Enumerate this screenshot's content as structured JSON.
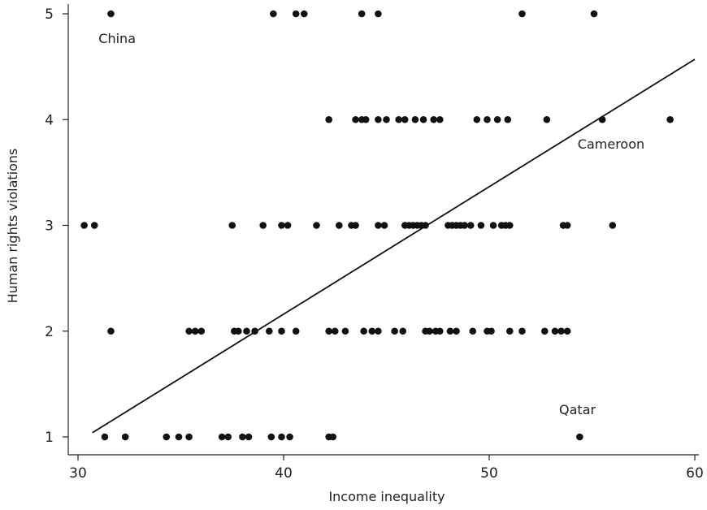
{
  "chart_data": {
    "type": "scatter",
    "xlabel": "Income inequality",
    "ylabel": "Human rights violations",
    "xlim": [
      29.6,
      60.6
    ],
    "ylim": [
      0.88,
      5.1
    ],
    "x_ticks": [
      30,
      40,
      50,
      60
    ],
    "y_ticks": [
      1,
      2,
      3,
      4,
      5
    ],
    "grid": false,
    "colors": {
      "points": "#111111",
      "line": "#111111"
    },
    "points": [
      {
        "x": 31.6,
        "y": 5
      },
      {
        "x": 39.5,
        "y": 5
      },
      {
        "x": 40.6,
        "y": 5
      },
      {
        "x": 41.0,
        "y": 5
      },
      {
        "x": 43.8,
        "y": 5
      },
      {
        "x": 44.6,
        "y": 5
      },
      {
        "x": 51.6,
        "y": 5
      },
      {
        "x": 55.1,
        "y": 5
      },
      {
        "x": 42.2,
        "y": 4
      },
      {
        "x": 43.5,
        "y": 4
      },
      {
        "x": 43.8,
        "y": 4
      },
      {
        "x": 44.0,
        "y": 4
      },
      {
        "x": 44.6,
        "y": 4
      },
      {
        "x": 45.0,
        "y": 4
      },
      {
        "x": 45.6,
        "y": 4
      },
      {
        "x": 45.9,
        "y": 4
      },
      {
        "x": 46.4,
        "y": 4
      },
      {
        "x": 46.8,
        "y": 4
      },
      {
        "x": 47.3,
        "y": 4
      },
      {
        "x": 47.6,
        "y": 4
      },
      {
        "x": 49.4,
        "y": 4
      },
      {
        "x": 49.9,
        "y": 4
      },
      {
        "x": 50.4,
        "y": 4
      },
      {
        "x": 50.9,
        "y": 4
      },
      {
        "x": 52.8,
        "y": 4
      },
      {
        "x": 55.5,
        "y": 4
      },
      {
        "x": 58.8,
        "y": 4
      },
      {
        "x": 30.3,
        "y": 3
      },
      {
        "x": 30.8,
        "y": 3
      },
      {
        "x": 37.5,
        "y": 3
      },
      {
        "x": 39.0,
        "y": 3
      },
      {
        "x": 39.9,
        "y": 3
      },
      {
        "x": 40.2,
        "y": 3
      },
      {
        "x": 41.6,
        "y": 3
      },
      {
        "x": 42.7,
        "y": 3
      },
      {
        "x": 43.3,
        "y": 3
      },
      {
        "x": 43.5,
        "y": 3
      },
      {
        "x": 44.6,
        "y": 3
      },
      {
        "x": 44.9,
        "y": 3
      },
      {
        "x": 45.9,
        "y": 3
      },
      {
        "x": 46.1,
        "y": 3
      },
      {
        "x": 46.3,
        "y": 3
      },
      {
        "x": 46.5,
        "y": 3
      },
      {
        "x": 46.7,
        "y": 3
      },
      {
        "x": 46.9,
        "y": 3
      },
      {
        "x": 48.0,
        "y": 3
      },
      {
        "x": 48.2,
        "y": 3
      },
      {
        "x": 48.4,
        "y": 3
      },
      {
        "x": 48.6,
        "y": 3
      },
      {
        "x": 48.8,
        "y": 3
      },
      {
        "x": 49.1,
        "y": 3
      },
      {
        "x": 49.6,
        "y": 3
      },
      {
        "x": 50.2,
        "y": 3
      },
      {
        "x": 50.6,
        "y": 3
      },
      {
        "x": 50.8,
        "y": 3
      },
      {
        "x": 51.0,
        "y": 3
      },
      {
        "x": 53.6,
        "y": 3
      },
      {
        "x": 53.8,
        "y": 3
      },
      {
        "x": 56.0,
        "y": 3
      },
      {
        "x": 31.6,
        "y": 2
      },
      {
        "x": 35.4,
        "y": 2
      },
      {
        "x": 35.7,
        "y": 2
      },
      {
        "x": 36.0,
        "y": 2
      },
      {
        "x": 37.6,
        "y": 2
      },
      {
        "x": 37.8,
        "y": 2
      },
      {
        "x": 38.2,
        "y": 2
      },
      {
        "x": 38.6,
        "y": 2
      },
      {
        "x": 39.3,
        "y": 2
      },
      {
        "x": 39.9,
        "y": 2
      },
      {
        "x": 40.6,
        "y": 2
      },
      {
        "x": 42.2,
        "y": 2
      },
      {
        "x": 42.5,
        "y": 2
      },
      {
        "x": 43.0,
        "y": 2
      },
      {
        "x": 43.9,
        "y": 2
      },
      {
        "x": 44.3,
        "y": 2
      },
      {
        "x": 44.6,
        "y": 2
      },
      {
        "x": 45.4,
        "y": 2
      },
      {
        "x": 45.8,
        "y": 2
      },
      {
        "x": 46.9,
        "y": 2
      },
      {
        "x": 47.1,
        "y": 2
      },
      {
        "x": 47.4,
        "y": 2
      },
      {
        "x": 47.6,
        "y": 2
      },
      {
        "x": 48.1,
        "y": 2
      },
      {
        "x": 48.4,
        "y": 2
      },
      {
        "x": 49.2,
        "y": 2
      },
      {
        "x": 49.9,
        "y": 2
      },
      {
        "x": 50.1,
        "y": 2
      },
      {
        "x": 51.0,
        "y": 2
      },
      {
        "x": 51.6,
        "y": 2
      },
      {
        "x": 52.7,
        "y": 2
      },
      {
        "x": 53.2,
        "y": 2
      },
      {
        "x": 53.5,
        "y": 2
      },
      {
        "x": 53.8,
        "y": 2
      },
      {
        "x": 31.3,
        "y": 1
      },
      {
        "x": 32.3,
        "y": 1
      },
      {
        "x": 34.3,
        "y": 1
      },
      {
        "x": 34.9,
        "y": 1
      },
      {
        "x": 35.4,
        "y": 1
      },
      {
        "x": 37.0,
        "y": 1
      },
      {
        "x": 37.3,
        "y": 1
      },
      {
        "x": 38.0,
        "y": 1
      },
      {
        "x": 38.3,
        "y": 1
      },
      {
        "x": 39.4,
        "y": 1
      },
      {
        "x": 39.9,
        "y": 1
      },
      {
        "x": 40.3,
        "y": 1
      },
      {
        "x": 42.2,
        "y": 1
      },
      {
        "x": 42.4,
        "y": 1
      },
      {
        "x": 54.4,
        "y": 1
      }
    ],
    "fit_line": {
      "x": [
        30.7,
        60.0
      ],
      "y": [
        1.04,
        4.57
      ]
    },
    "annotations": [
      {
        "text": "China",
        "x": 31.0,
        "y": 4.77
      },
      {
        "text": "Cameroon",
        "x": 54.3,
        "y": 3.77
      },
      {
        "text": "Qatar",
        "x": 53.4,
        "y": 1.26
      }
    ]
  }
}
